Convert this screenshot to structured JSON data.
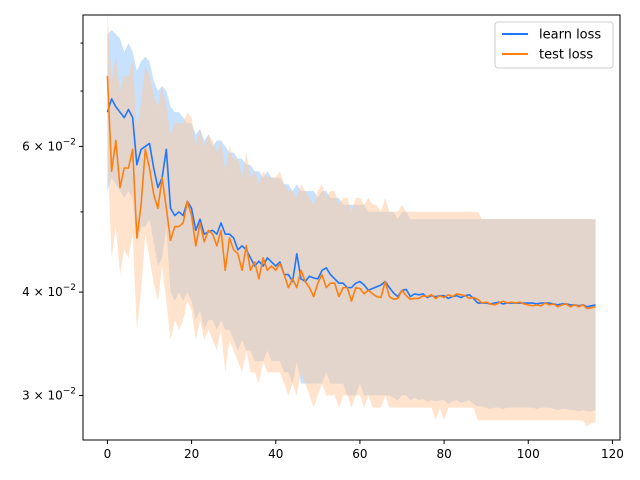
{
  "chart_data": {
    "type": "line",
    "title": "",
    "xlabel": "",
    "ylabel": "",
    "yscale": "log",
    "xlim": [
      -5.8,
      121.8
    ],
    "ylim": [
      0.0265,
      0.0865
    ],
    "xticks": [
      0,
      20,
      40,
      60,
      80,
      100,
      120
    ],
    "xtick_labels": [
      "0",
      "20",
      "40",
      "60",
      "80",
      "100",
      "120"
    ],
    "yticks_major": [
      0.03,
      0.04,
      0.06
    ],
    "ytick_major_labels": [
      "3 × 10⁻²",
      "4 × 10⁻²",
      "6 × 10⁻²"
    ],
    "ytick_major_label_parts": [
      {
        "mantissa": "3",
        "base": "10",
        "exponent": "−2"
      },
      {
        "mantissa": "4",
        "base": "10",
        "exponent": "−2"
      },
      {
        "mantissa": "6",
        "base": "10",
        "exponent": "−2"
      }
    ],
    "yticks_minor": [
      0.05,
      0.07,
      0.08
    ],
    "grid": false,
    "legend_position": "upper right",
    "series": [
      {
        "name": "learn loss",
        "color": "#1f77ff",
        "band_color": "#99c9ff",
        "x_start": 0,
        "x_step": 1,
        "values": [
          0.066,
          0.0685,
          0.067,
          0.066,
          0.065,
          0.0665,
          0.065,
          0.057,
          0.0595,
          0.06,
          0.0605,
          0.0565,
          0.0535,
          0.055,
          0.0595,
          0.0505,
          0.0495,
          0.05,
          0.0495,
          0.0515,
          0.0505,
          0.0475,
          0.049,
          0.047,
          0.0473,
          0.0475,
          0.047,
          0.0485,
          0.047,
          0.047,
          0.0465,
          0.045,
          0.0455,
          0.045,
          0.044,
          0.043,
          0.0436,
          0.043,
          0.044,
          0.0435,
          0.043,
          0.0435,
          0.042,
          0.042,
          0.0412,
          0.0445,
          0.0415,
          0.0412,
          0.0418,
          0.0416,
          0.0415,
          0.0425,
          0.0428,
          0.042,
          0.0415,
          0.041,
          0.041,
          0.0405,
          0.0405,
          0.041,
          0.0412,
          0.0408,
          0.0402,
          0.0404,
          0.0406,
          0.0408,
          0.0412,
          0.0405,
          0.0399,
          0.0395,
          0.0402,
          0.0403,
          0.0395,
          0.0398,
          0.0397,
          0.0398,
          0.0394,
          0.0396,
          0.0395,
          0.0396,
          0.0396,
          0.0393,
          0.0395,
          0.0396,
          0.0394,
          0.0396,
          0.0397,
          0.0393,
          0.0388,
          0.0388,
          0.0388,
          0.0387,
          0.0388,
          0.0389,
          0.0387,
          0.0388,
          0.0388,
          0.0388,
          0.0388,
          0.0388,
          0.0388,
          0.0388,
          0.0387,
          0.0388,
          0.0388,
          0.0388,
          0.0387,
          0.0386,
          0.0387,
          0.0387,
          0.0386,
          0.0386,
          0.0385,
          0.0386,
          0.0384,
          0.0385,
          0.0386
        ],
        "upper": [
          0.082,
          0.083,
          0.082,
          0.081,
          0.078,
          0.08,
          0.078,
          0.074,
          0.076,
          0.077,
          0.076,
          0.072,
          0.07,
          0.071,
          0.07,
          0.067,
          0.066,
          0.066,
          0.065,
          0.064,
          0.064,
          0.062,
          0.063,
          0.061,
          0.062,
          0.06,
          0.061,
          0.061,
          0.06,
          0.059,
          0.059,
          0.058,
          0.058,
          0.057,
          0.057,
          0.056,
          0.056,
          0.055,
          0.056,
          0.055,
          0.055,
          0.055,
          0.054,
          0.054,
          0.053,
          0.054,
          0.053,
          0.053,
          0.053,
          0.053,
          0.052,
          0.053,
          0.053,
          0.052,
          0.052,
          0.052,
          0.051,
          0.051,
          0.051,
          0.051,
          0.051,
          0.051,
          0.05,
          0.05,
          0.05,
          0.05,
          0.05,
          0.05,
          0.05,
          0.049,
          0.05,
          0.05,
          0.049,
          0.049,
          0.049,
          0.049,
          0.049,
          0.049,
          0.049,
          0.049,
          0.049,
          0.049,
          0.049,
          0.049,
          0.049,
          0.049,
          0.049,
          0.049,
          0.049,
          0.049,
          0.049,
          0.049,
          0.049,
          0.049,
          0.049,
          0.049,
          0.049,
          0.049,
          0.049,
          0.049,
          0.049,
          0.049,
          0.049,
          0.049,
          0.049,
          0.049,
          0.049,
          0.049,
          0.049,
          0.049,
          0.049,
          0.049,
          0.049,
          0.049,
          0.049,
          0.049,
          0.049
        ],
        "lower": [
          0.053,
          0.055,
          0.054,
          0.053,
          0.052,
          0.053,
          0.052,
          0.046,
          0.048,
          0.048,
          0.049,
          0.046,
          0.043,
          0.044,
          0.048,
          0.04,
          0.039,
          0.04,
          0.039,
          0.04,
          0.039,
          0.037,
          0.038,
          0.036,
          0.037,
          0.037,
          0.036,
          0.037,
          0.036,
          0.036,
          0.035,
          0.034,
          0.035,
          0.034,
          0.034,
          0.033,
          0.033,
          0.033,
          0.034,
          0.033,
          0.033,
          0.033,
          0.032,
          0.032,
          0.031,
          0.033,
          0.031,
          0.031,
          0.031,
          0.031,
          0.031,
          0.031,
          0.032,
          0.031,
          0.031,
          0.031,
          0.031,
          0.03,
          0.03,
          0.03,
          0.031,
          0.03,
          0.03,
          0.03,
          0.03,
          0.03,
          0.03,
          0.03,
          0.0298,
          0.0296,
          0.03,
          0.03,
          0.0296,
          0.0298,
          0.0296,
          0.0297,
          0.0295,
          0.0296,
          0.0295,
          0.0296,
          0.0296,
          0.0293,
          0.0295,
          0.0296,
          0.0294,
          0.0295,
          0.0296,
          0.0293,
          0.0291,
          0.0291,
          0.029,
          0.0289,
          0.029,
          0.029,
          0.0289,
          0.029,
          0.029,
          0.029,
          0.029,
          0.029,
          0.029,
          0.029,
          0.0289,
          0.029,
          0.029,
          0.029,
          0.0289,
          0.0288,
          0.0289,
          0.0289,
          0.0288,
          0.0288,
          0.0287,
          0.0288,
          0.0287,
          0.0287,
          0.0288
        ]
      },
      {
        "name": "test loss",
        "color": "#ff7f0e",
        "band_color": "#ffc899",
        "x_start": 0,
        "x_step": 1,
        "values": [
          0.073,
          0.056,
          0.061,
          0.0535,
          0.0565,
          0.0565,
          0.0595,
          0.0465,
          0.051,
          0.0595,
          0.0565,
          0.0525,
          0.0505,
          0.055,
          0.0505,
          0.0462,
          0.048,
          0.048,
          0.0485,
          0.0515,
          0.0495,
          0.0455,
          0.0485,
          0.046,
          0.0475,
          0.047,
          0.0455,
          0.0475,
          0.0425,
          0.0465,
          0.045,
          0.0445,
          0.0425,
          0.0455,
          0.0425,
          0.0435,
          0.0415,
          0.044,
          0.0425,
          0.043,
          0.0425,
          0.0433,
          0.042,
          0.0405,
          0.0415,
          0.0405,
          0.0425,
          0.0412,
          0.0405,
          0.0395,
          0.041,
          0.042,
          0.0405,
          0.041,
          0.041,
          0.0395,
          0.0405,
          0.0405,
          0.039,
          0.0405,
          0.0404,
          0.0398,
          0.0402,
          0.0398,
          0.0395,
          0.0394,
          0.0412,
          0.0395,
          0.0392,
          0.0393,
          0.0402,
          0.0396,
          0.0392,
          0.0393,
          0.0393,
          0.0396,
          0.0395,
          0.0397,
          0.0393,
          0.0396,
          0.0394,
          0.0397,
          0.0395,
          0.0398,
          0.0397,
          0.0396,
          0.0393,
          0.0394,
          0.0392,
          0.0388,
          0.0389,
          0.0387,
          0.0386,
          0.0388,
          0.039,
          0.0388,
          0.0389,
          0.0388,
          0.0389,
          0.0387,
          0.0386,
          0.0385,
          0.0386,
          0.0385,
          0.0388,
          0.0386,
          0.0387,
          0.0384,
          0.0386,
          0.0387,
          0.0384,
          0.0386,
          0.0384,
          0.0386,
          0.0382,
          0.0383,
          0.0384
        ],
        "upper": [
          0.087,
          0.072,
          0.077,
          0.07,
          0.073,
          0.073,
          0.076,
          0.063,
          0.068,
          0.075,
          0.073,
          0.069,
          0.067,
          0.071,
          0.067,
          0.062,
          0.064,
          0.064,
          0.064,
          0.066,
          0.065,
          0.06,
          0.063,
          0.06,
          0.062,
          0.061,
          0.059,
          0.061,
          0.056,
          0.06,
          0.058,
          0.058,
          0.055,
          0.059,
          0.055,
          0.056,
          0.054,
          0.056,
          0.055,
          0.055,
          0.055,
          0.056,
          0.054,
          0.053,
          0.053,
          0.052,
          0.054,
          0.053,
          0.052,
          0.051,
          0.053,
          0.054,
          0.052,
          0.053,
          0.053,
          0.051,
          0.052,
          0.052,
          0.05,
          0.052,
          0.052,
          0.051,
          0.052,
          0.051,
          0.051,
          0.05,
          0.052,
          0.05,
          0.05,
          0.05,
          0.051,
          0.05,
          0.05,
          0.05,
          0.05,
          0.05,
          0.05,
          0.05,
          0.05,
          0.05,
          0.05,
          0.05,
          0.05,
          0.05,
          0.05,
          0.05,
          0.05,
          0.05,
          0.05,
          0.049,
          0.049,
          0.049,
          0.049,
          0.049,
          0.049,
          0.049,
          0.049,
          0.049,
          0.049,
          0.049,
          0.049,
          0.049,
          0.049,
          0.049,
          0.049,
          0.049,
          0.049,
          0.049,
          0.049,
          0.049,
          0.049,
          0.049,
          0.049,
          0.049,
          0.049,
          0.049,
          0.049
        ],
        "lower": [
          0.059,
          0.044,
          0.048,
          0.042,
          0.045,
          0.044,
          0.047,
          0.036,
          0.04,
          0.047,
          0.044,
          0.041,
          0.039,
          0.043,
          0.039,
          0.035,
          0.037,
          0.036,
          0.037,
          0.039,
          0.038,
          0.035,
          0.037,
          0.035,
          0.036,
          0.035,
          0.034,
          0.036,
          0.032,
          0.035,
          0.034,
          0.033,
          0.032,
          0.034,
          0.032,
          0.032,
          0.031,
          0.033,
          0.032,
          0.032,
          0.032,
          0.032,
          0.031,
          0.03,
          0.031,
          0.03,
          0.032,
          0.031,
          0.03,
          0.029,
          0.03,
          0.031,
          0.03,
          0.03,
          0.03,
          0.029,
          0.03,
          0.03,
          0.029,
          0.03,
          0.03,
          0.029,
          0.03,
          0.029,
          0.029,
          0.029,
          0.03,
          0.029,
          0.029,
          0.029,
          0.029,
          0.029,
          0.029,
          0.029,
          0.029,
          0.029,
          0.029,
          0.029,
          0.028,
          0.029,
          0.028,
          0.029,
          0.029,
          0.029,
          0.029,
          0.029,
          0.029,
          0.029,
          0.028,
          0.028,
          0.028,
          0.028,
          0.028,
          0.028,
          0.028,
          0.028,
          0.028,
          0.028,
          0.028,
          0.028,
          0.028,
          0.028,
          0.028,
          0.028,
          0.028,
          0.028,
          0.028,
          0.028,
          0.028,
          0.028,
          0.028,
          0.028,
          0.028,
          0.028,
          0.0275,
          0.0278,
          0.0278
        ]
      }
    ]
  }
}
